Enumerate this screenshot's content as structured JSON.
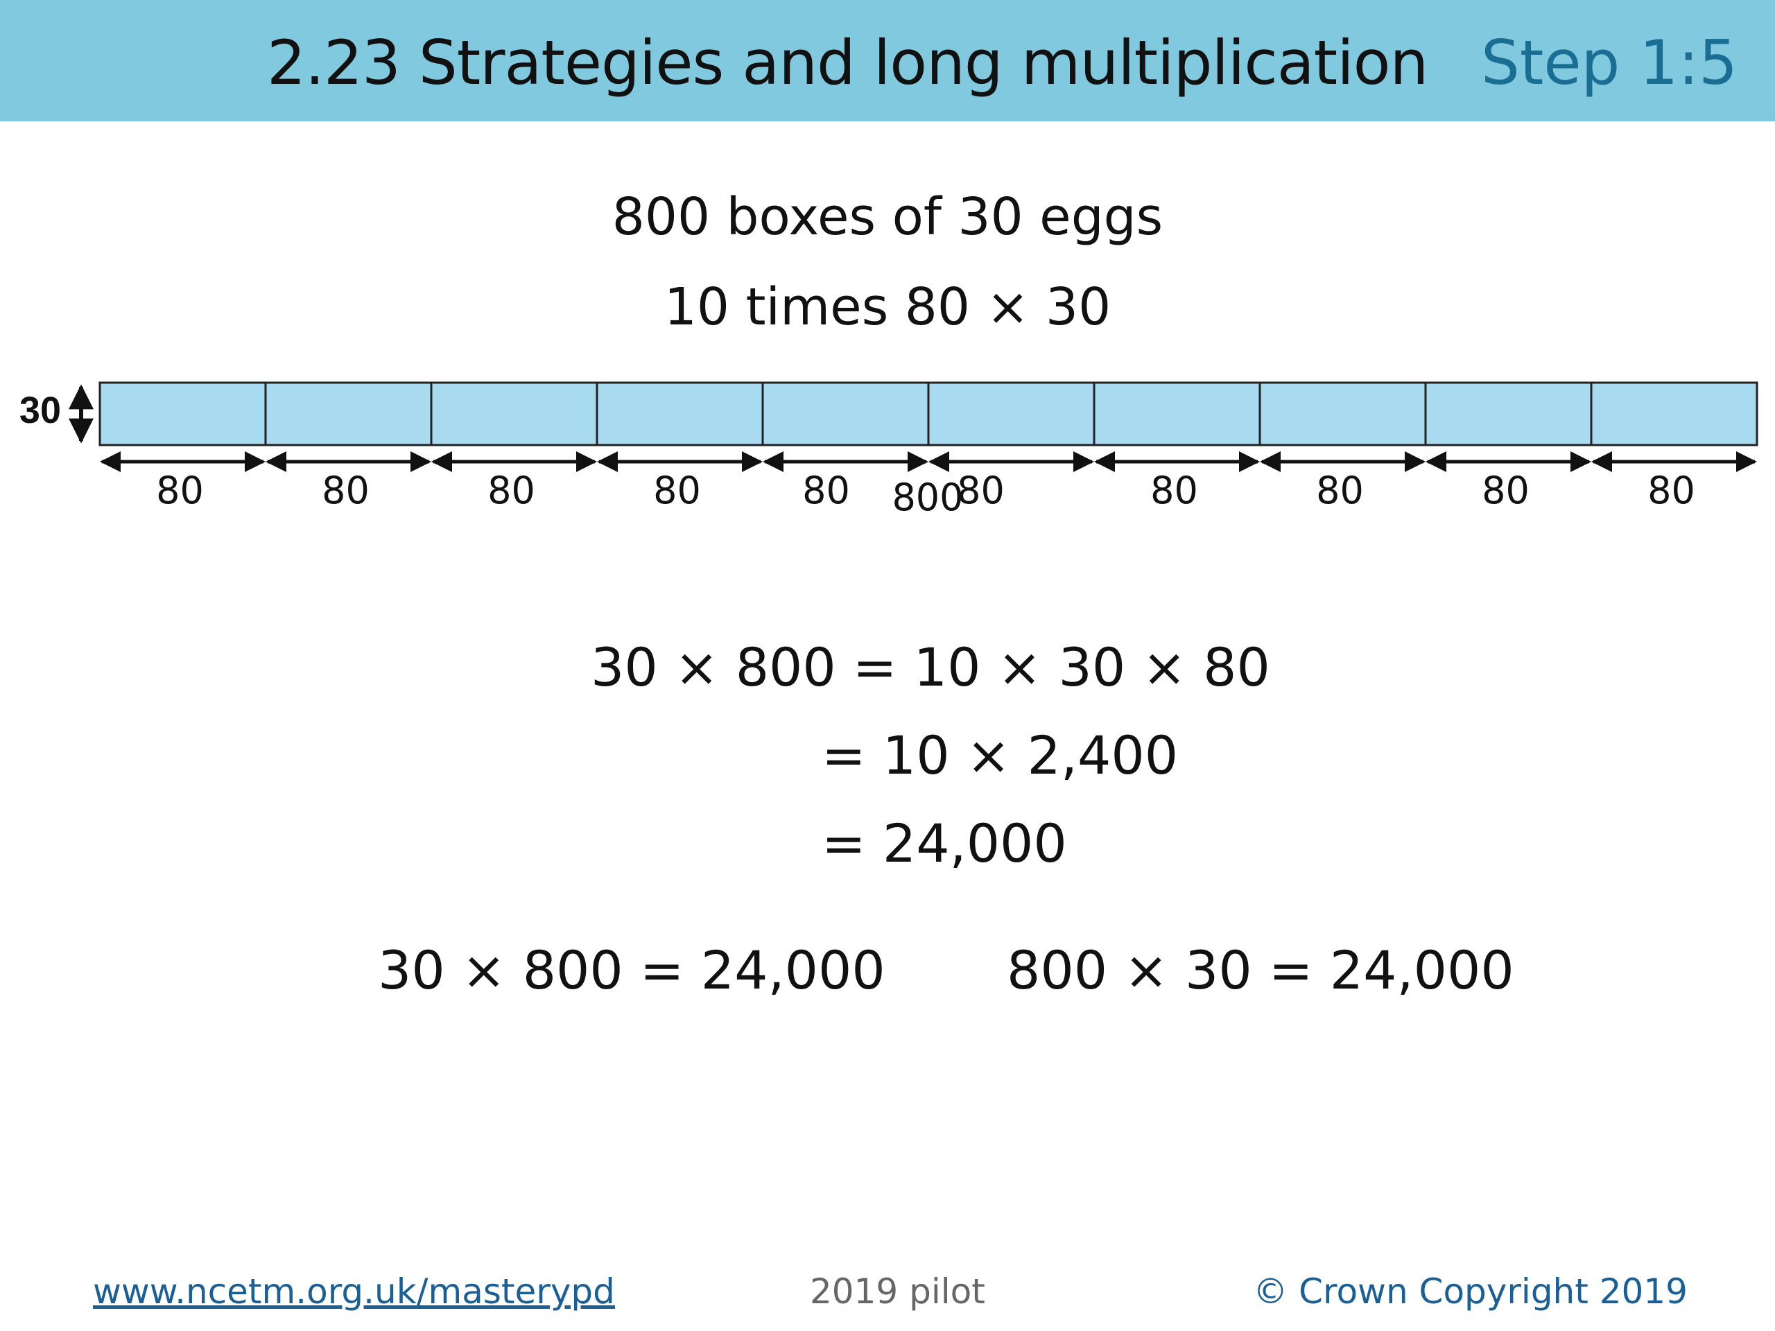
{
  "header": {
    "title": "2.23 Strategies and long multiplication",
    "step": "Step 1:5"
  },
  "problem": {
    "line1": "800 boxes of 30 eggs",
    "line2": "10 times 80 × 30"
  },
  "bar_model": {
    "height_label": "30",
    "segment_labels": [
      "80",
      "80",
      "80",
      "80",
      "80",
      "80",
      "80",
      "80",
      "80",
      "80"
    ],
    "total_label": "800",
    "fill_color": "#a8dbf0",
    "stroke_color": "#222222"
  },
  "working": {
    "line1": "30 × 800 = 10 × 30 × 80",
    "line2": "= 10 × 2,400",
    "line3": "= 24,000"
  },
  "results": {
    "left": "30 × 800 = 24,000",
    "right": "800 × 30 = 24,000"
  },
  "footer": {
    "link": "www.ncetm.org.uk/masterypd",
    "center": "2019 pilot",
    "copyright": "© Crown Copyright 2019"
  },
  "colors": {
    "header_bg": "#80c9de",
    "step_text": "#1a6e93",
    "link": "#1a5f96"
  }
}
